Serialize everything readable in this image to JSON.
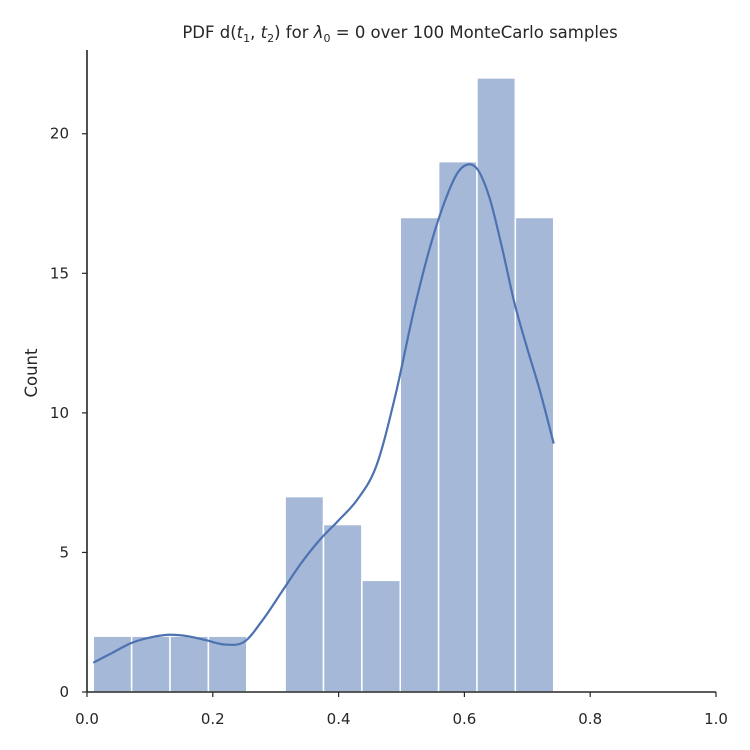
{
  "chart_data": {
    "type": "bar",
    "title_parts": {
      "prefix": "PDF d(",
      "t1": "t",
      "t1_sub": "1",
      "comma": ", ",
      "t2": "t",
      "t2_sub": "2",
      "mid": ") for ",
      "lambda": "λ",
      "lambda_sub": "0",
      "suffix": " = 0 over 100 MonteCarlo samples"
    },
    "xlabel": "",
    "ylabel": "Count",
    "xlim": [
      0.0,
      1.0
    ],
    "ylim": [
      0,
      23.0
    ],
    "x_ticks": [
      "0.0",
      "0.2",
      "0.4",
      "0.6",
      "0.8",
      "1.0"
    ],
    "x_tick_values": [
      0.0,
      0.2,
      0.4,
      0.6,
      0.8,
      1.0
    ],
    "y_ticks": [
      "0",
      "5",
      "10",
      "15",
      "20"
    ],
    "y_tick_values": [
      0,
      5,
      10,
      15,
      20
    ],
    "grid": false,
    "bar_color": "#a5b8d8",
    "kde_color": "#4c72b0",
    "histogram": {
      "bins": [
        {
          "x0": 0.01,
          "x1": 0.071,
          "count": 2
        },
        {
          "x0": 0.071,
          "x1": 0.132,
          "count": 2
        },
        {
          "x0": 0.132,
          "x1": 0.193,
          "count": 2
        },
        {
          "x0": 0.193,
          "x1": 0.254,
          "count": 2
        },
        {
          "x0": 0.254,
          "x1": 0.315,
          "count": 0
        },
        {
          "x0": 0.315,
          "x1": 0.376,
          "count": 7
        },
        {
          "x0": 0.376,
          "x1": 0.437,
          "count": 6
        },
        {
          "x0": 0.437,
          "x1": 0.498,
          "count": 4
        },
        {
          "x0": 0.498,
          "x1": 0.559,
          "count": 17
        },
        {
          "x0": 0.559,
          "x1": 0.62,
          "count": 19
        },
        {
          "x0": 0.62,
          "x1": 0.681,
          "count": 22
        },
        {
          "x0": 0.681,
          "x1": 0.742,
          "count": 17
        }
      ]
    },
    "kde": {
      "x": [
        0.01,
        0.04,
        0.07,
        0.1,
        0.13,
        0.16,
        0.19,
        0.22,
        0.25,
        0.28,
        0.31,
        0.34,
        0.37,
        0.4,
        0.43,
        0.46,
        0.49,
        0.52,
        0.55,
        0.58,
        0.6,
        0.62,
        0.64,
        0.66,
        0.68,
        0.7,
        0.72,
        0.742
      ],
      "y": [
        1.05,
        1.4,
        1.75,
        1.95,
        2.05,
        2.0,
        1.85,
        1.7,
        1.8,
        2.6,
        3.6,
        4.6,
        5.45,
        6.15,
        6.9,
        8.1,
        10.6,
        13.7,
        16.3,
        18.2,
        18.85,
        18.75,
        17.7,
        15.9,
        13.9,
        12.3,
        10.8,
        8.9
      ]
    }
  }
}
